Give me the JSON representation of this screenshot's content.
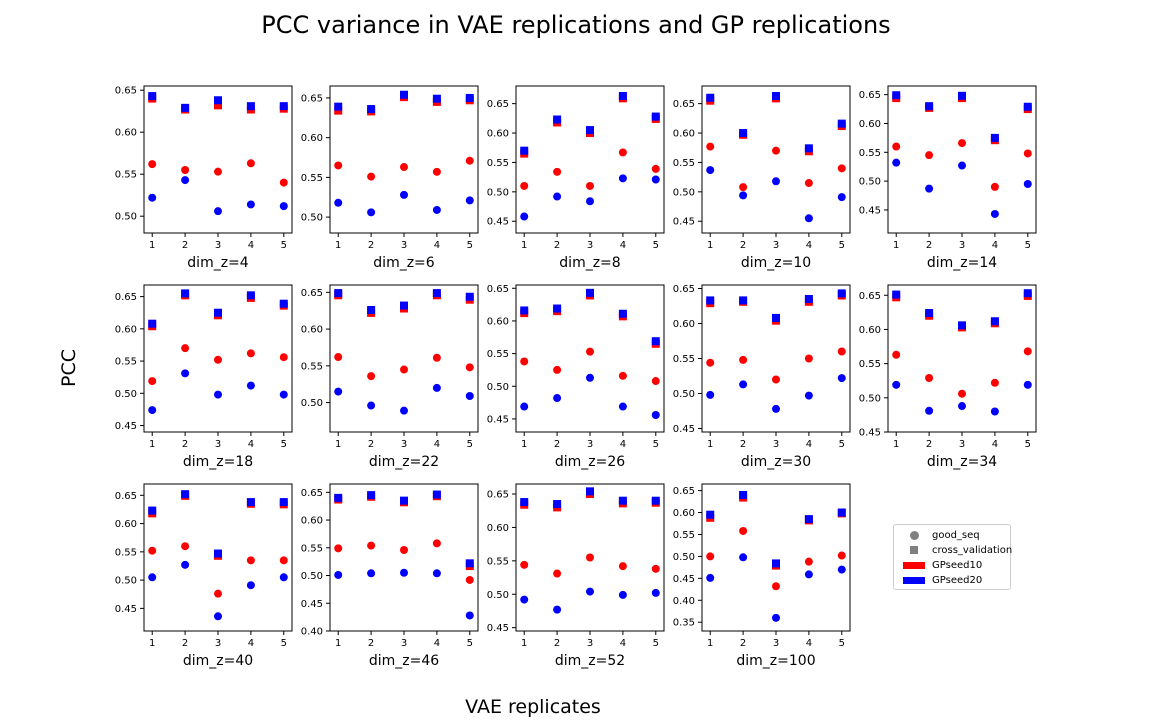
{
  "figure": {
    "title": "PCC variance in VAE replications and GP replications",
    "ylabel": "PCC",
    "xlabel": "VAE replicates"
  },
  "legend": {
    "entries": [
      {
        "label": "good_seq",
        "marker": "circle",
        "color": "#808080"
      },
      {
        "label": "cross_validation",
        "marker": "square",
        "color": "#808080"
      },
      {
        "label": "GPseed10",
        "marker": "patch",
        "color": "#ff0000"
      },
      {
        "label": "GPseed20",
        "marker": "patch",
        "color": "#0000ff"
      }
    ]
  },
  "colors": {
    "GPseed10": "#ff0000",
    "GPseed20": "#0000ff"
  },
  "chart_data": [
    {
      "type": "scatter",
      "xlabel": "dim_z=4",
      "x": [
        1,
        2,
        3,
        4,
        5
      ],
      "ylim": [
        0.48,
        0.655
      ],
      "yticks": [
        "0.50",
        "0.55",
        "0.60",
        "0.65"
      ],
      "series": [
        {
          "name": "GPseed10",
          "marker": "circle",
          "values": [
            0.562,
            0.555,
            0.553,
            0.563,
            0.54
          ]
        },
        {
          "name": "GPseed20",
          "marker": "circle",
          "values": [
            0.522,
            0.543,
            0.506,
            0.514,
            0.512
          ]
        },
        {
          "name": "GPseed10",
          "marker": "square",
          "values": [
            0.64,
            0.627,
            0.632,
            0.627,
            0.628
          ]
        },
        {
          "name": "GPseed20",
          "marker": "square",
          "values": [
            0.643,
            0.629,
            0.638,
            0.631,
            0.631
          ]
        }
      ]
    },
    {
      "type": "scatter",
      "xlabel": "dim_z=6",
      "x": [
        1,
        2,
        3,
        4,
        5
      ],
      "ylim": [
        0.48,
        0.665
      ],
      "yticks": [
        "0.50",
        "0.55",
        "0.60",
        "0.65"
      ],
      "series": [
        {
          "name": "GPseed10",
          "marker": "circle",
          "values": [
            0.565,
            0.551,
            0.563,
            0.557,
            0.571
          ]
        },
        {
          "name": "GPseed20",
          "marker": "circle",
          "values": [
            0.518,
            0.506,
            0.528,
            0.509,
            0.521
          ]
        },
        {
          "name": "GPseed10",
          "marker": "square",
          "values": [
            0.634,
            0.633,
            0.651,
            0.645,
            0.647
          ]
        },
        {
          "name": "GPseed20",
          "marker": "square",
          "values": [
            0.639,
            0.636,
            0.654,
            0.649,
            0.65
          ]
        }
      ]
    },
    {
      "type": "scatter",
      "xlabel": "dim_z=8",
      "x": [
        1,
        2,
        3,
        4,
        5
      ],
      "ylim": [
        0.43,
        0.68
      ],
      "yticks": [
        "0.45",
        "0.50",
        "0.55",
        "0.60",
        "0.65"
      ],
      "series": [
        {
          "name": "GPseed10",
          "marker": "circle",
          "values": [
            0.51,
            0.534,
            0.51,
            0.567,
            0.539
          ]
        },
        {
          "name": "GPseed20",
          "marker": "circle",
          "values": [
            0.458,
            0.492,
            0.484,
            0.523,
            0.521
          ]
        },
        {
          "name": "GPseed10",
          "marker": "square",
          "values": [
            0.565,
            0.618,
            0.6,
            0.659,
            0.624
          ]
        },
        {
          "name": "GPseed20",
          "marker": "square",
          "values": [
            0.57,
            0.623,
            0.605,
            0.663,
            0.628
          ]
        }
      ]
    },
    {
      "type": "scatter",
      "xlabel": "dim_z=10",
      "x": [
        1,
        2,
        3,
        4,
        5
      ],
      "ylim": [
        0.43,
        0.68
      ],
      "yticks": [
        "0.45",
        "0.50",
        "0.55",
        "0.60",
        "0.65"
      ],
      "series": [
        {
          "name": "GPseed10",
          "marker": "circle",
          "values": [
            0.577,
            0.508,
            0.57,
            0.515,
            0.54
          ]
        },
        {
          "name": "GPseed20",
          "marker": "circle",
          "values": [
            0.537,
            0.494,
            0.518,
            0.455,
            0.491
          ]
        },
        {
          "name": "GPseed10",
          "marker": "square",
          "values": [
            0.655,
            0.597,
            0.659,
            0.569,
            0.612
          ]
        },
        {
          "name": "GPseed20",
          "marker": "square",
          "values": [
            0.66,
            0.6,
            0.663,
            0.574,
            0.616
          ]
        }
      ]
    },
    {
      "type": "scatter",
      "xlabel": "dim_z=14",
      "x": [
        1,
        2,
        3,
        4,
        5
      ],
      "ylim": [
        0.41,
        0.665
      ],
      "yticks": [
        "0.45",
        "0.50",
        "0.55",
        "0.60",
        "0.65"
      ],
      "series": [
        {
          "name": "GPseed10",
          "marker": "circle",
          "values": [
            0.56,
            0.545,
            0.566,
            0.49,
            0.548
          ]
        },
        {
          "name": "GPseed20",
          "marker": "circle",
          "values": [
            0.532,
            0.487,
            0.527,
            0.443,
            0.495
          ]
        },
        {
          "name": "GPseed10",
          "marker": "square",
          "values": [
            0.644,
            0.627,
            0.644,
            0.571,
            0.625
          ]
        },
        {
          "name": "GPseed20",
          "marker": "square",
          "values": [
            0.649,
            0.63,
            0.648,
            0.575,
            0.629
          ]
        }
      ]
    },
    {
      "type": "scatter",
      "xlabel": "dim_z=18",
      "x": [
        1,
        2,
        3,
        4,
        5
      ],
      "ylim": [
        0.44,
        0.668
      ],
      "yticks": [
        "0.45",
        "0.50",
        "0.55",
        "0.60",
        "0.65"
      ],
      "series": [
        {
          "name": "GPseed10",
          "marker": "circle",
          "values": [
            0.519,
            0.57,
            0.552,
            0.562,
            0.556
          ]
        },
        {
          "name": "GPseed20",
          "marker": "circle",
          "values": [
            0.474,
            0.531,
            0.498,
            0.512,
            0.498
          ]
        },
        {
          "name": "GPseed10",
          "marker": "square",
          "values": [
            0.604,
            0.652,
            0.621,
            0.648,
            0.636
          ]
        },
        {
          "name": "GPseed20",
          "marker": "square",
          "values": [
            0.608,
            0.655,
            0.625,
            0.652,
            0.639
          ]
        }
      ]
    },
    {
      "type": "scatter",
      "xlabel": "dim_z=22",
      "x": [
        1,
        2,
        3,
        4,
        5
      ],
      "ylim": [
        0.46,
        0.66
      ],
      "yticks": [
        "0.50",
        "0.55",
        "0.60",
        "0.65"
      ],
      "series": [
        {
          "name": "GPseed10",
          "marker": "circle",
          "values": [
            0.562,
            0.536,
            0.545,
            0.561,
            0.548
          ]
        },
        {
          "name": "GPseed20",
          "marker": "circle",
          "values": [
            0.515,
            0.496,
            0.489,
            0.52,
            0.509
          ]
        },
        {
          "name": "GPseed10",
          "marker": "square",
          "values": [
            0.646,
            0.622,
            0.628,
            0.646,
            0.64
          ]
        },
        {
          "name": "GPseed20",
          "marker": "square",
          "values": [
            0.649,
            0.626,
            0.632,
            0.649,
            0.644
          ]
        }
      ]
    },
    {
      "type": "scatter",
      "xlabel": "dim_z=26",
      "x": [
        1,
        2,
        3,
        4,
        5
      ],
      "ylim": [
        0.43,
        0.655
      ],
      "yticks": [
        "0.45",
        "0.50",
        "0.55",
        "0.60",
        "0.65"
      ],
      "series": [
        {
          "name": "GPseed10",
          "marker": "circle",
          "values": [
            0.538,
            0.525,
            0.553,
            0.516,
            0.508
          ]
        },
        {
          "name": "GPseed20",
          "marker": "circle",
          "values": [
            0.469,
            0.482,
            0.513,
            0.469,
            0.456
          ]
        },
        {
          "name": "GPseed10",
          "marker": "square",
          "values": [
            0.612,
            0.615,
            0.639,
            0.607,
            0.565
          ]
        },
        {
          "name": "GPseed20",
          "marker": "square",
          "values": [
            0.616,
            0.619,
            0.643,
            0.611,
            0.569
          ]
        }
      ]
    },
    {
      "type": "scatter",
      "xlabel": "dim_z=30",
      "x": [
        1,
        2,
        3,
        4,
        5
      ],
      "ylim": [
        0.445,
        0.655
      ],
      "yticks": [
        "0.45",
        "0.50",
        "0.55",
        "0.60",
        "0.65"
      ],
      "series": [
        {
          "name": "GPseed10",
          "marker": "circle",
          "values": [
            0.544,
            0.548,
            0.52,
            0.55,
            0.56
          ]
        },
        {
          "name": "GPseed20",
          "marker": "circle",
          "values": [
            0.498,
            0.513,
            0.478,
            0.497,
            0.522
          ]
        },
        {
          "name": "GPseed10",
          "marker": "square",
          "values": [
            0.629,
            0.631,
            0.604,
            0.631,
            0.64
          ]
        },
        {
          "name": "GPseed20",
          "marker": "square",
          "values": [
            0.633,
            0.633,
            0.608,
            0.635,
            0.643
          ]
        }
      ]
    },
    {
      "type": "scatter",
      "xlabel": "dim_z=34",
      "x": [
        1,
        2,
        3,
        4,
        5
      ],
      "ylim": [
        0.45,
        0.665
      ],
      "yticks": [
        "0.45",
        "0.50",
        "0.55",
        "0.60",
        "0.65"
      ],
      "series": [
        {
          "name": "GPseed10",
          "marker": "circle",
          "values": [
            0.563,
            0.529,
            0.506,
            0.522,
            0.568
          ]
        },
        {
          "name": "GPseed20",
          "marker": "circle",
          "values": [
            0.519,
            0.481,
            0.488,
            0.48,
            0.519
          ]
        },
        {
          "name": "GPseed10",
          "marker": "square",
          "values": [
            0.647,
            0.62,
            0.603,
            0.609,
            0.649
          ]
        },
        {
          "name": "GPseed20",
          "marker": "square",
          "values": [
            0.651,
            0.624,
            0.606,
            0.612,
            0.653
          ]
        }
      ]
    },
    {
      "type": "scatter",
      "xlabel": "dim_z=40",
      "x": [
        1,
        2,
        3,
        4,
        5
      ],
      "ylim": [
        0.41,
        0.67
      ],
      "yticks": [
        "0.45",
        "0.50",
        "0.55",
        "0.60",
        "0.65"
      ],
      "series": [
        {
          "name": "GPseed10",
          "marker": "circle",
          "values": [
            0.552,
            0.56,
            0.476,
            0.535,
            0.535
          ]
        },
        {
          "name": "GPseed20",
          "marker": "circle",
          "values": [
            0.505,
            0.527,
            0.436,
            0.491,
            0.505
          ]
        },
        {
          "name": "GPseed10",
          "marker": "square",
          "values": [
            0.618,
            0.649,
            0.543,
            0.635,
            0.634
          ]
        },
        {
          "name": "GPseed20",
          "marker": "square",
          "values": [
            0.623,
            0.652,
            0.547,
            0.638,
            0.638
          ]
        }
      ]
    },
    {
      "type": "scatter",
      "xlabel": "dim_z=46",
      "x": [
        1,
        2,
        3,
        4,
        5
      ],
      "ylim": [
        0.4,
        0.665
      ],
      "yticks": [
        "0.40",
        "0.45",
        "0.50",
        "0.55",
        "0.60",
        "0.65"
      ],
      "series": [
        {
          "name": "GPseed10",
          "marker": "circle",
          "values": [
            0.549,
            0.554,
            0.546,
            0.558,
            0.492
          ]
        },
        {
          "name": "GPseed20",
          "marker": "circle",
          "values": [
            0.501,
            0.504,
            0.505,
            0.504,
            0.428
          ]
        },
        {
          "name": "GPseed10",
          "marker": "square",
          "values": [
            0.637,
            0.642,
            0.632,
            0.643,
            0.517
          ]
        },
        {
          "name": "GPseed20",
          "marker": "square",
          "values": [
            0.64,
            0.645,
            0.635,
            0.646,
            0.522
          ]
        }
      ]
    },
    {
      "type": "scatter",
      "xlabel": "dim_z=52",
      "x": [
        1,
        2,
        3,
        4,
        5
      ],
      "ylim": [
        0.445,
        0.665
      ],
      "yticks": [
        "0.45",
        "0.50",
        "0.55",
        "0.60",
        "0.65"
      ],
      "series": [
        {
          "name": "GPseed10",
          "marker": "circle",
          "values": [
            0.544,
            0.531,
            0.555,
            0.542,
            0.538
          ]
        },
        {
          "name": "GPseed20",
          "marker": "circle",
          "values": [
            0.492,
            0.477,
            0.504,
            0.499,
            0.502
          ]
        },
        {
          "name": "GPseed10",
          "marker": "square",
          "values": [
            0.634,
            0.63,
            0.65,
            0.636,
            0.637
          ]
        },
        {
          "name": "GPseed20",
          "marker": "square",
          "values": [
            0.638,
            0.635,
            0.654,
            0.64,
            0.64
          ]
        }
      ]
    },
    {
      "type": "scatter",
      "xlabel": "dim_z=100",
      "x": [
        1,
        2,
        3,
        4,
        5
      ],
      "ylim": [
        0.33,
        0.665
      ],
      "yticks": [
        "0.35",
        "0.40",
        "0.45",
        "0.50",
        "0.55",
        "0.60",
        "0.65"
      ],
      "series": [
        {
          "name": "GPseed10",
          "marker": "circle",
          "values": [
            0.5,
            0.558,
            0.432,
            0.488,
            0.502
          ]
        },
        {
          "name": "GPseed20",
          "marker": "circle",
          "values": [
            0.451,
            0.498,
            0.36,
            0.459,
            0.47
          ]
        },
        {
          "name": "GPseed10",
          "marker": "square",
          "values": [
            0.588,
            0.634,
            0.479,
            0.582,
            0.598
          ]
        },
        {
          "name": "GPseed20",
          "marker": "square",
          "values": [
            0.595,
            0.64,
            0.484,
            0.585,
            0.6
          ]
        }
      ]
    }
  ]
}
